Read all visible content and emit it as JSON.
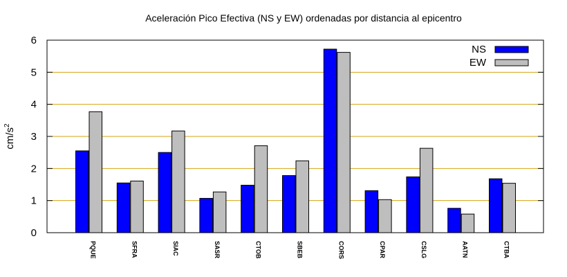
{
  "chart_data": {
    "type": "bar",
    "title": "Aceleración Pico Efectiva (NS y EW) ordenadas por distancia al epicentro",
    "xlabel": "",
    "ylabel": "cm/s",
    "ylabel_superscript": "2",
    "ylim": [
      0,
      6
    ],
    "yticks": [
      0,
      1,
      2,
      3,
      4,
      5,
      6
    ],
    "grid": "horizontal",
    "legend_position": "top-right",
    "categories": [
      "PQUE",
      "SFRA",
      "SIAC",
      "SASR",
      "CTOB",
      "SBEB",
      "CORS",
      "CPAR",
      "CSLG",
      "AATN",
      "CTBA"
    ],
    "series": [
      {
        "name": "NS",
        "color": "#0000ff",
        "values": [
          2.55,
          1.55,
          2.5,
          1.07,
          1.48,
          1.78,
          5.72,
          1.31,
          1.74,
          0.76,
          1.68
        ]
      },
      {
        "name": "EW",
        "color": "#bebebe",
        "values": [
          3.77,
          1.61,
          3.17,
          1.27,
          2.71,
          2.24,
          5.62,
          1.03,
          2.63,
          0.58,
          1.54
        ]
      }
    ],
    "colors": {
      "grid": "#d4a20e",
      "axis": "#000000"
    }
  }
}
